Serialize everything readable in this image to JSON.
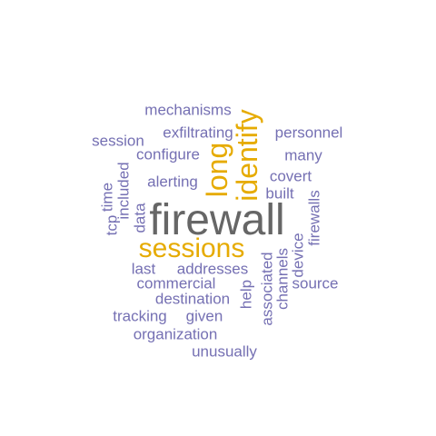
{
  "colors": {
    "small": "#7570b3",
    "medium": "#e6ab02",
    "large": "#666666",
    "background": "#ffffff"
  },
  "words": [
    {
      "text": "firewall",
      "weight": 3,
      "orientation": "horizontal"
    },
    {
      "text": "sessions",
      "weight": 2,
      "orientation": "horizontal"
    },
    {
      "text": "long",
      "weight": 2,
      "orientation": "vertical"
    },
    {
      "text": "identify",
      "weight": 2,
      "orientation": "vertical"
    },
    {
      "text": "mechanisms",
      "weight": 1,
      "orientation": "horizontal"
    },
    {
      "text": "exfiltrating",
      "weight": 1,
      "orientation": "horizontal"
    },
    {
      "text": "personnel",
      "weight": 1,
      "orientation": "horizontal"
    },
    {
      "text": "session",
      "weight": 1,
      "orientation": "horizontal"
    },
    {
      "text": "configure",
      "weight": 1,
      "orientation": "horizontal"
    },
    {
      "text": "many",
      "weight": 1,
      "orientation": "horizontal"
    },
    {
      "text": "covert",
      "weight": 1,
      "orientation": "horizontal"
    },
    {
      "text": "alerting",
      "weight": 1,
      "orientation": "horizontal"
    },
    {
      "text": "built",
      "weight": 1,
      "orientation": "horizontal"
    },
    {
      "text": "time",
      "weight": 1,
      "orientation": "vertical"
    },
    {
      "text": "tcp",
      "weight": 1,
      "orientation": "vertical"
    },
    {
      "text": "included",
      "weight": 1,
      "orientation": "vertical"
    },
    {
      "text": "data",
      "weight": 1,
      "orientation": "vertical"
    },
    {
      "text": "firewalls",
      "weight": 1,
      "orientation": "vertical"
    },
    {
      "text": "device",
      "weight": 1,
      "orientation": "vertical"
    },
    {
      "text": "channels",
      "weight": 1,
      "orientation": "vertical"
    },
    {
      "text": "associated",
      "weight": 1,
      "orientation": "vertical"
    },
    {
      "text": "help",
      "weight": 1,
      "orientation": "vertical"
    },
    {
      "text": "last",
      "weight": 1,
      "orientation": "horizontal"
    },
    {
      "text": "addresses",
      "weight": 1,
      "orientation": "horizontal"
    },
    {
      "text": "commercial",
      "weight": 1,
      "orientation": "horizontal"
    },
    {
      "text": "source",
      "weight": 1,
      "orientation": "horizontal"
    },
    {
      "text": "destination",
      "weight": 1,
      "orientation": "horizontal"
    },
    {
      "text": "tracking",
      "weight": 1,
      "orientation": "horizontal"
    },
    {
      "text": "given",
      "weight": 1,
      "orientation": "horizontal"
    },
    {
      "text": "organization",
      "weight": 1,
      "orientation": "horizontal"
    },
    {
      "text": "unusually",
      "weight": 1,
      "orientation": "horizontal"
    }
  ]
}
